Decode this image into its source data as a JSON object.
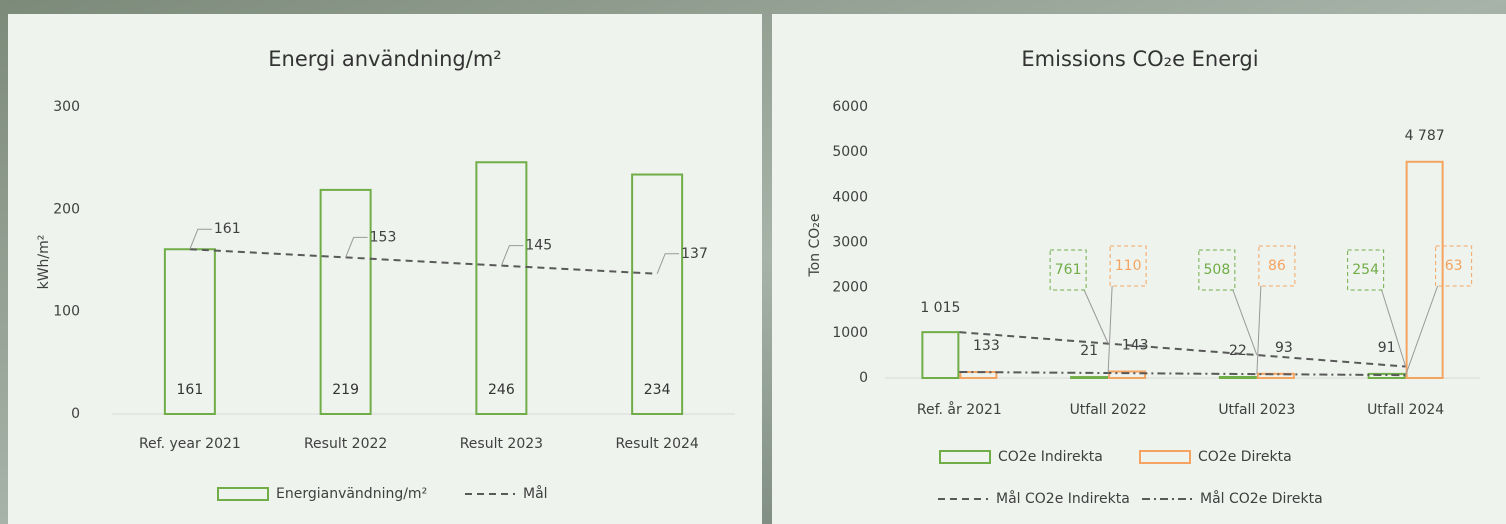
{
  "chart_data": [
    {
      "type": "bar",
      "title": "Energi användning/m²",
      "y_label": "kWh/m²",
      "categories": [
        "Ref. year 2021",
        "Result 2022",
        "Result 2023",
        "Result 2024"
      ],
      "series": [
        {
          "name": "Energianvändning/m²",
          "type": "bar",
          "color": "#70ad47",
          "values": [
            161,
            219,
            246,
            234
          ]
        },
        {
          "name": "Mål",
          "type": "line",
          "dash": "dashed",
          "color": "#595959",
          "values": [
            161,
            153,
            145,
            137
          ]
        }
      ],
      "ylim": [
        0,
        300
      ],
      "yticks": [
        0,
        100,
        200,
        300
      ],
      "grid": false
    },
    {
      "type": "bar",
      "title": "Emissions CO₂e Energi",
      "y_label": "Ton CO₂e",
      "categories": [
        "Ref. år 2021",
        "Utfall 2022",
        "Utfall 2023",
        "Utfall 2024"
      ],
      "series": [
        {
          "name": "CO2e Indirekta",
          "type": "bar",
          "color": "#70ad47",
          "values": [
            1015,
            21,
            22,
            91
          ],
          "value_labels": [
            "1 015",
            "21",
            "22",
            "91"
          ]
        },
        {
          "name": "CO2e Direkta",
          "type": "bar",
          "color": "#f4a460",
          "values": [
            133,
            143,
            93,
            4787
          ],
          "value_labels": [
            "133",
            "143",
            "93",
            "4 787"
          ]
        },
        {
          "name": "Mål CO2e Indirekta",
          "type": "line",
          "dash": "dashed",
          "color": "#595959",
          "values": [
            1015,
            761,
            508,
            254
          ]
        },
        {
          "name": "Mål CO2e Direkta",
          "type": "line",
          "dash": "dashdot",
          "color": "#595959",
          "values": [
            133,
            110,
            86,
            63
          ]
        }
      ],
      "ylim": [
        0,
        6000
      ],
      "yticks": [
        0,
        1000,
        2000,
        3000,
        4000,
        5000,
        6000
      ],
      "grid": false
    }
  ]
}
